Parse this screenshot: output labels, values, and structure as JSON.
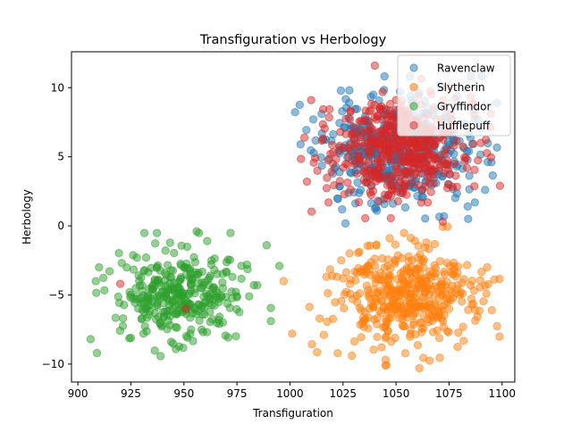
{
  "chart_data": {
    "type": "scatter",
    "title": "Transfiguration vs Herbology",
    "xlabel": "Transfiguration",
    "ylabel": "Herbology",
    "xlim": [
      897,
      1106
    ],
    "ylim": [
      -11.3,
      12.6
    ],
    "xticks": [
      900,
      925,
      950,
      975,
      1000,
      1025,
      1050,
      1075,
      1100
    ],
    "yticks": [
      -10,
      -5,
      0,
      5,
      10
    ],
    "grid": false,
    "legend_position": "top-right",
    "marker_alpha": 0.5,
    "series": [
      {
        "name": "Ravenclaw",
        "color": "#1f77b4",
        "cluster": {
          "x_mean": 1050,
          "x_std": 17,
          "y_mean": 5.5,
          "y_std": 1.9,
          "n": 440,
          "seed": 11
        },
        "points": [
          [
            1092,
            2.6
          ],
          [
            1005,
            5.9
          ],
          [
            1011,
            7.7
          ],
          [
            1084,
            0.5
          ],
          [
            1057,
            9.4
          ],
          [
            1041,
            1.1
          ],
          [
            1095,
            4.6
          ]
        ]
      },
      {
        "name": "Slytherin",
        "color": "#ff7f0e",
        "cluster": {
          "x_mean": 1054,
          "x_std": 16,
          "y_mean": -5.1,
          "y_std": 1.8,
          "n": 430,
          "seed": 23
        },
        "points": [
          [
            1001,
            -7.8
          ],
          [
            997,
            -4.0
          ],
          [
            1061,
            -10.3
          ],
          [
            1045,
            -10.1
          ],
          [
            1093,
            -3.0
          ],
          [
            1047,
            -0.9
          ],
          [
            1014,
            -6.7
          ]
        ]
      },
      {
        "name": "Gryffindor",
        "color": "#2ca02c",
        "cluster": {
          "x_mean": 949,
          "x_std": 15,
          "y_mean": -5.0,
          "y_std": 1.6,
          "n": 330,
          "seed": 37
        },
        "points": [
          [
            909,
            -9.2
          ],
          [
            906,
            -8.2
          ],
          [
            910,
            -3.0
          ],
          [
            956,
            -0.4
          ],
          [
            989,
            -1.4
          ],
          [
            995,
            -2.9
          ],
          [
            963,
            -2.5
          ]
        ]
      },
      {
        "name": "Hufflepuff",
        "color": "#d62728",
        "cluster": {
          "x_mean": 1050,
          "x_std": 16,
          "y_mean": 5.6,
          "y_std": 1.8,
          "n": 470,
          "seed": 53
        },
        "points": [
          [
            1040,
            11.6
          ],
          [
            1099,
            2.9
          ],
          [
            1008,
            3.2
          ],
          [
            1010,
            9.1
          ],
          [
            1090,
            6.0
          ],
          [
            1072,
            0.3
          ],
          [
            920,
            -4.2
          ],
          [
            951,
            -6.0
          ]
        ]
      }
    ]
  }
}
